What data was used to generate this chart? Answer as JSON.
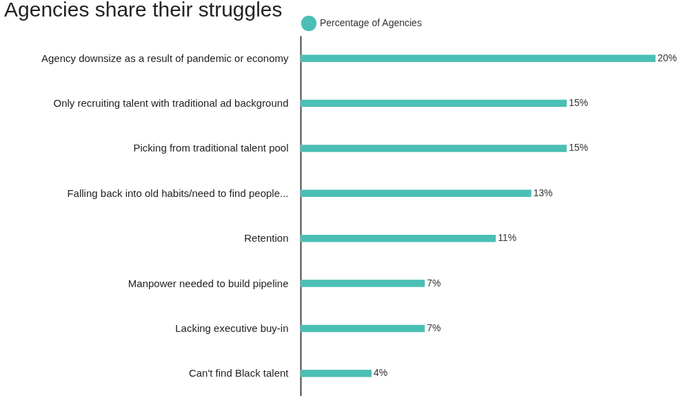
{
  "chart_data": {
    "type": "bar",
    "orientation": "horizontal",
    "title": "Agencies share their struggles",
    "categories": [
      "Agency downsize as a result of pandemic or economy",
      "Only recruiting talent with traditional ad background",
      "Picking from traditional talent pool",
      "Falling back into old habits/need to find people...",
      "Retention",
      "Manpower needed to build pipeline",
      "Lacking executive buy-in",
      "Can't find Black talent"
    ],
    "series": [
      {
        "name": "Percentage of Agencies",
        "color": "#4bbfb5",
        "values": [
          20,
          15,
          15,
          13,
          11,
          7,
          7,
          4
        ],
        "value_labels": [
          "20%",
          "15%",
          "15%",
          "13%",
          "11%",
          "7%",
          "7%",
          "4%"
        ]
      }
    ],
    "legend": "top",
    "grid": false
  }
}
